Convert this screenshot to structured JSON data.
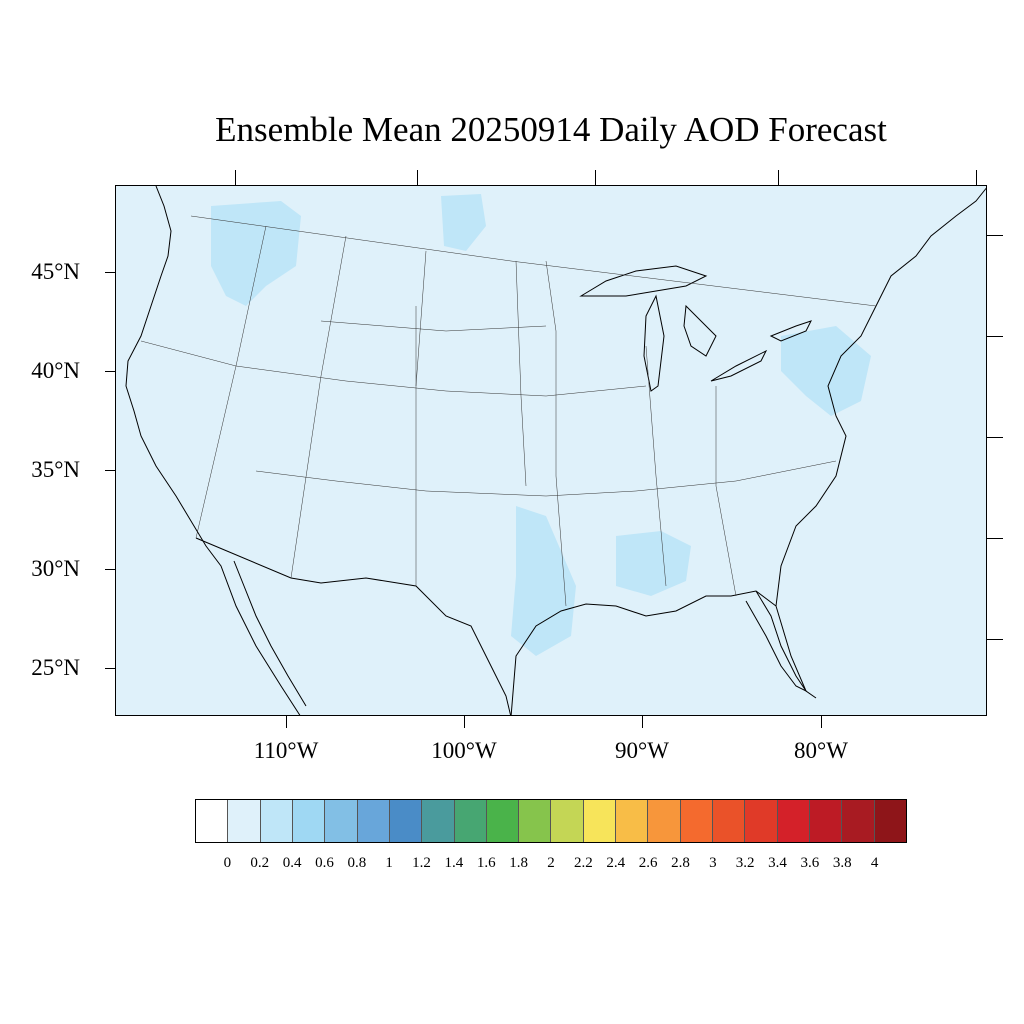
{
  "title": "Ensemble Mean 20250914 Daily AOD Forecast",
  "axes": {
    "lat_labels": [
      "45°N",
      "40°N",
      "35°N",
      "30°N",
      "25°N"
    ],
    "lon_labels": [
      "110°W",
      "100°W",
      "90°W",
      "80°W"
    ]
  },
  "map": {
    "background_color": "#dff1fa",
    "plume_color": "#bfe6f8",
    "plume_regions": [
      "Montana / Idaho",
      "North Dakota",
      "East Texas / Louisiana",
      "Mississippi / Alabama",
      "Pennsylvania / New Jersey"
    ]
  },
  "colorbar": {
    "labels": [
      "0",
      "0.2",
      "0.4",
      "0.6",
      "0.8",
      "1",
      "1.2",
      "1.4",
      "1.6",
      "1.8",
      "2",
      "2.2",
      "2.4",
      "2.6",
      "2.8",
      "3",
      "3.2",
      "3.4",
      "3.6",
      "3.8",
      "4"
    ],
    "colors": [
      "#ffffff",
      "#dff1fa",
      "#bfe6f8",
      "#9fd8f3",
      "#82bfe5",
      "#68a6da",
      "#4a8cc7",
      "#4a9b9d",
      "#47a672",
      "#4ab34a",
      "#86c44c",
      "#c4d655",
      "#f7e45a",
      "#f8bd47",
      "#f7963b",
      "#f46a2e",
      "#ea5229",
      "#e03a28",
      "#d42129",
      "#bd1b25",
      "#a81b22",
      "#8e1519"
    ]
  }
}
